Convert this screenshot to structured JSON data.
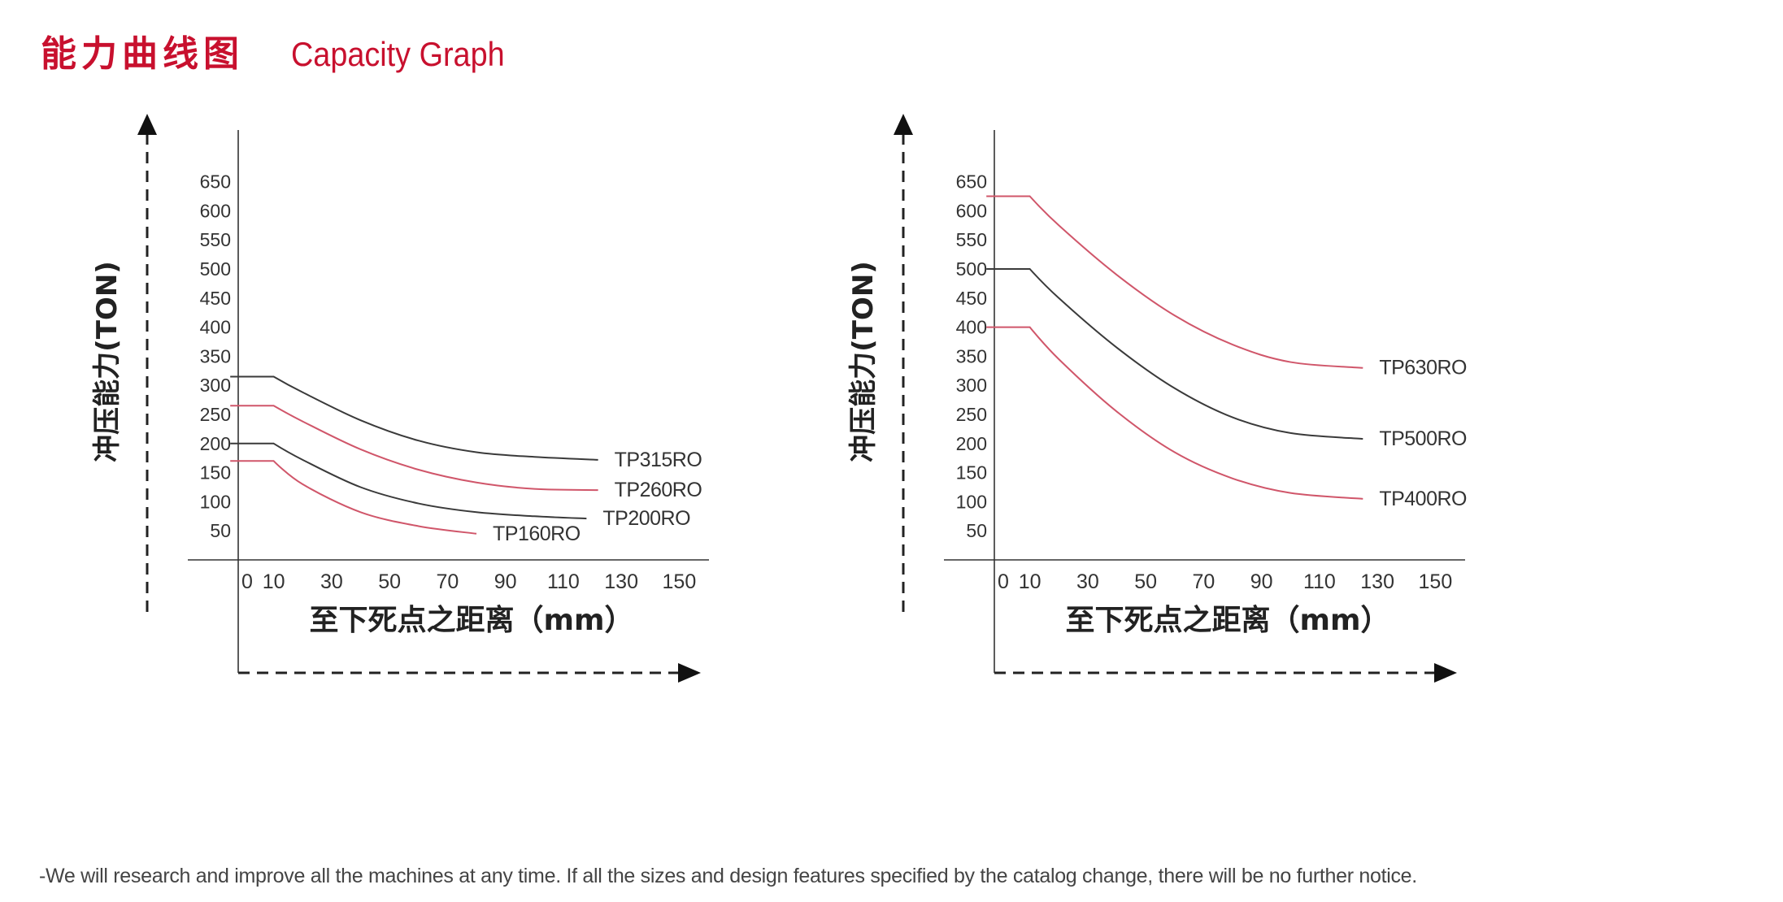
{
  "heading": {
    "cn": "能力曲线图",
    "en": "Capacity Graph"
  },
  "footnote": "-We will research and improve all the machines at any time. If all the sizes and design features specified by the catalog change, there will be no further notice.",
  "colors": {
    "accent": "#c8102e",
    "black_curve": "#3a3a3a",
    "red_curve": "#d0566a",
    "axis": "#333333"
  },
  "chart_data": [
    {
      "type": "line",
      "ylabel": "冲压能力(TON)",
      "xlabel": "至下死点之距离（mm）",
      "x_ticks": [
        0,
        10,
        30,
        50,
        70,
        90,
        110,
        130,
        150
      ],
      "y_ticks": [
        50,
        100,
        150,
        200,
        250,
        300,
        350,
        400,
        450,
        500,
        550,
        600,
        650
      ],
      "series": [
        {
          "name": "TP315RO",
          "color": "black",
          "x": [
            -5,
            10,
            20,
            40,
            60,
            80,
            100,
            122
          ],
          "y": [
            315,
            315,
            288,
            240,
            205,
            185,
            177,
            172
          ]
        },
        {
          "name": "TP260RO",
          "color": "red",
          "x": [
            -5,
            10,
            20,
            40,
            60,
            80,
            100,
            122
          ],
          "y": [
            265,
            265,
            238,
            190,
            155,
            133,
            122,
            120
          ]
        },
        {
          "name": "TP200RO",
          "color": "black",
          "x": [
            -5,
            10,
            20,
            40,
            60,
            80,
            100,
            118
          ],
          "y": [
            200,
            200,
            172,
            125,
            97,
            82,
            75,
            71
          ]
        },
        {
          "name": "TP160RO",
          "color": "red",
          "x": [
            -5,
            10,
            20,
            40,
            60,
            80
          ],
          "y": [
            170,
            170,
            130,
            82,
            58,
            45
          ]
        }
      ]
    },
    {
      "type": "line",
      "ylabel": "冲压能力(TON)",
      "xlabel": "至下死点之距离（mm）",
      "x_ticks": [
        0,
        10,
        30,
        50,
        70,
        90,
        110,
        130,
        150
      ],
      "y_ticks": [
        50,
        100,
        150,
        200,
        250,
        300,
        350,
        400,
        450,
        500,
        550,
        600,
        650
      ],
      "series": [
        {
          "name": "TP630RO",
          "color": "red",
          "x": [
            -5,
            10,
            20,
            40,
            60,
            80,
            100,
            125
          ],
          "y": [
            625,
            625,
            575,
            490,
            420,
            370,
            340,
            330
          ]
        },
        {
          "name": "TP500RO",
          "color": "black",
          "x": [
            -5,
            10,
            20,
            40,
            60,
            80,
            100,
            125
          ],
          "y": [
            500,
            500,
            450,
            365,
            295,
            245,
            218,
            208
          ]
        },
        {
          "name": "TP400RO",
          "color": "red",
          "x": [
            -5,
            10,
            20,
            40,
            60,
            80,
            100,
            125
          ],
          "y": [
            400,
            400,
            345,
            255,
            185,
            140,
            115,
            105
          ]
        }
      ]
    }
  ]
}
